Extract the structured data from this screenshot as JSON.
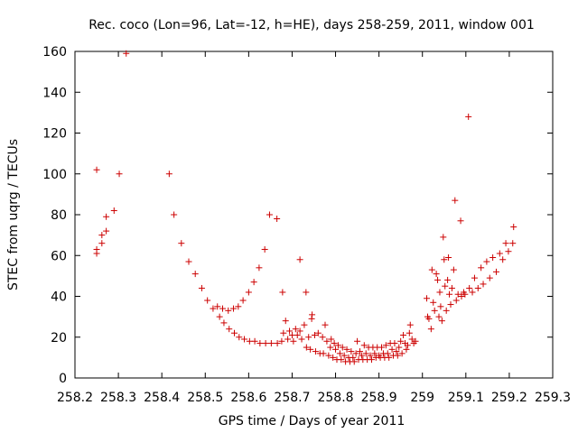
{
  "chart_data": {
    "type": "scatter",
    "title": "Rec. coco (Lon=96, Lat=-12, h=HE), days 258-259, 2011, window 001",
    "xlabel": "GPS time / Days of year 2011",
    "ylabel": "STEC from uqrg / TECUs",
    "xlim": [
      258.2,
      259.3
    ],
    "ylim": [
      0,
      160
    ],
    "xticks": [
      258.2,
      258.3,
      258.4,
      258.5,
      258.6,
      258.7,
      258.8,
      258.9,
      259,
      259.1,
      259.2,
      259.3
    ],
    "xtick_labels": [
      "258.2",
      "258.3",
      "258.4",
      "258.5",
      "258.6",
      "258.7",
      "258.8",
      "258.9",
      "259",
      "259.1",
      "259.2",
      "259.3"
    ],
    "yticks": [
      0,
      20,
      40,
      60,
      80,
      100,
      120,
      140,
      160
    ],
    "ytick_labels": [
      "0",
      "20",
      "40",
      "60",
      "80",
      "100",
      "120",
      "140",
      "160"
    ],
    "marker": "+",
    "marker_color": "#cc0000",
    "grid": false,
    "series": [
      {
        "name": "STEC",
        "points": [
          [
            258.25,
            102
          ],
          [
            258.25,
            63
          ],
          [
            258.25,
            61
          ],
          [
            258.262,
            66
          ],
          [
            258.262,
            70
          ],
          [
            258.272,
            79
          ],
          [
            258.272,
            72
          ],
          [
            258.29,
            82
          ],
          [
            258.302,
            100
          ],
          [
            258.318,
            159
          ],
          [
            258.417,
            100
          ],
          [
            258.428,
            80
          ],
          [
            258.445,
            66
          ],
          [
            258.462,
            57
          ],
          [
            258.477,
            51
          ],
          [
            258.492,
            44
          ],
          [
            258.505,
            38
          ],
          [
            258.518,
            34
          ],
          [
            258.528,
            35
          ],
          [
            258.533,
            30
          ],
          [
            258.54,
            34
          ],
          [
            258.543,
            27
          ],
          [
            258.553,
            33
          ],
          [
            258.555,
            24
          ],
          [
            258.565,
            34
          ],
          [
            258.567,
            22
          ],
          [
            258.576,
            35
          ],
          [
            258.578,
            20
          ],
          [
            258.587,
            38
          ],
          [
            258.59,
            19
          ],
          [
            258.6,
            42
          ],
          [
            258.602,
            18
          ],
          [
            258.612,
            47
          ],
          [
            258.614,
            18
          ],
          [
            258.624,
            54
          ],
          [
            258.626,
            17
          ],
          [
            258.637,
            63
          ],
          [
            258.639,
            17
          ],
          [
            258.648,
            80
          ],
          [
            258.652,
            17
          ],
          [
            258.665,
            78
          ],
          [
            258.666,
            17
          ],
          [
            258.678,
            42
          ],
          [
            258.676,
            18
          ],
          [
            258.68,
            22
          ],
          [
            258.685,
            28
          ],
          [
            258.69,
            19
          ],
          [
            258.694,
            23
          ],
          [
            258.7,
            21
          ],
          [
            258.703,
            18
          ],
          [
            258.708,
            24
          ],
          [
            258.712,
            21
          ],
          [
            258.718,
            58
          ],
          [
            258.718,
            23
          ],
          [
            258.722,
            19
          ],
          [
            258.728,
            26
          ],
          [
            258.732,
            42
          ],
          [
            258.733,
            15
          ],
          [
            258.738,
            20
          ],
          [
            258.742,
            14
          ],
          [
            258.745,
            29
          ],
          [
            258.746,
            31
          ],
          [
            258.752,
            21
          ],
          [
            258.754,
            13
          ],
          [
            258.76,
            22
          ],
          [
            258.764,
            12
          ],
          [
            258.77,
            20
          ],
          [
            258.772,
            12
          ],
          [
            258.776,
            26
          ],
          [
            258.78,
            18
          ],
          [
            258.784,
            11
          ],
          [
            258.788,
            15
          ],
          [
            258.79,
            19
          ],
          [
            258.794,
            10
          ],
          [
            258.797,
            17
          ],
          [
            258.8,
            14
          ],
          [
            258.803,
            9
          ],
          [
            258.806,
            16
          ],
          [
            258.81,
            12
          ],
          [
            258.813,
            9
          ],
          [
            258.816,
            15
          ],
          [
            258.82,
            11
          ],
          [
            258.823,
            8
          ],
          [
            258.826,
            14
          ],
          [
            258.83,
            10
          ],
          [
            258.833,
            8
          ],
          [
            258.836,
            13
          ],
          [
            258.84,
            10
          ],
          [
            258.843,
            8
          ],
          [
            258.847,
            12
          ],
          [
            258.85,
            18
          ],
          [
            258.853,
            9
          ],
          [
            258.856,
            13
          ],
          [
            258.86,
            11
          ],
          [
            258.863,
            9
          ],
          [
            258.866,
            16
          ],
          [
            258.87,
            12
          ],
          [
            258.873,
            9
          ],
          [
            258.876,
            15
          ],
          [
            258.88,
            11
          ],
          [
            258.883,
            9
          ],
          [
            258.886,
            15
          ],
          [
            258.89,
            12
          ],
          [
            258.893,
            10
          ],
          [
            258.896,
            15
          ],
          [
            258.9,
            11
          ],
          [
            258.903,
            10
          ],
          [
            258.906,
            15
          ],
          [
            258.91,
            12
          ],
          [
            258.913,
            10
          ],
          [
            258.916,
            16
          ],
          [
            258.92,
            12
          ],
          [
            258.923,
            10
          ],
          [
            258.926,
            17
          ],
          [
            258.93,
            14
          ],
          [
            258.933,
            11
          ],
          [
            258.936,
            17
          ],
          [
            258.94,
            13
          ],
          [
            258.943,
            11
          ],
          [
            258.946,
            15
          ],
          [
            258.95,
            18
          ],
          [
            258.953,
            12
          ],
          [
            258.956,
            21
          ],
          [
            258.96,
            17
          ],
          [
            258.963,
            14
          ],
          [
            258.966,
            16
          ],
          [
            258.97,
            22
          ],
          [
            258.972,
            26
          ],
          [
            258.976,
            19
          ],
          [
            258.98,
            17
          ],
          [
            258.984,
            18
          ],
          [
            259.01,
            39
          ],
          [
            259.012,
            30
          ],
          [
            259.015,
            29
          ],
          [
            259.02,
            24
          ],
          [
            259.022,
            53
          ],
          [
            259.025,
            37
          ],
          [
            259.028,
            33
          ],
          [
            259.032,
            51
          ],
          [
            259.035,
            48
          ],
          [
            259.038,
            30
          ],
          [
            259.04,
            42
          ],
          [
            259.042,
            35
          ],
          [
            259.045,
            28
          ],
          [
            259.048,
            69
          ],
          [
            259.05,
            58
          ],
          [
            259.052,
            45
          ],
          [
            259.055,
            33
          ],
          [
            259.058,
            48
          ],
          [
            259.06,
            59
          ],
          [
            259.062,
            41
          ],
          [
            259.065,
            36
          ],
          [
            259.068,
            44
          ],
          [
            259.072,
            53
          ],
          [
            259.075,
            87
          ],
          [
            259.078,
            38
          ],
          [
            259.082,
            41
          ],
          [
            259.088,
            77
          ],
          [
            259.09,
            40
          ],
          [
            259.095,
            42
          ],
          [
            259.098,
            41
          ],
          [
            259.106,
            128
          ],
          [
            259.108,
            44
          ],
          [
            259.115,
            42
          ],
          [
            259.12,
            49
          ],
          [
            259.128,
            44
          ],
          [
            259.135,
            54
          ],
          [
            259.14,
            46
          ],
          [
            259.148,
            57
          ],
          [
            259.155,
            49
          ],
          [
            259.162,
            59
          ],
          [
            259.17,
            52
          ],
          [
            259.178,
            61
          ],
          [
            259.185,
            58
          ],
          [
            259.192,
            66
          ],
          [
            259.198,
            62
          ],
          [
            259.208,
            66
          ],
          [
            259.21,
            74
          ]
        ]
      }
    ]
  }
}
